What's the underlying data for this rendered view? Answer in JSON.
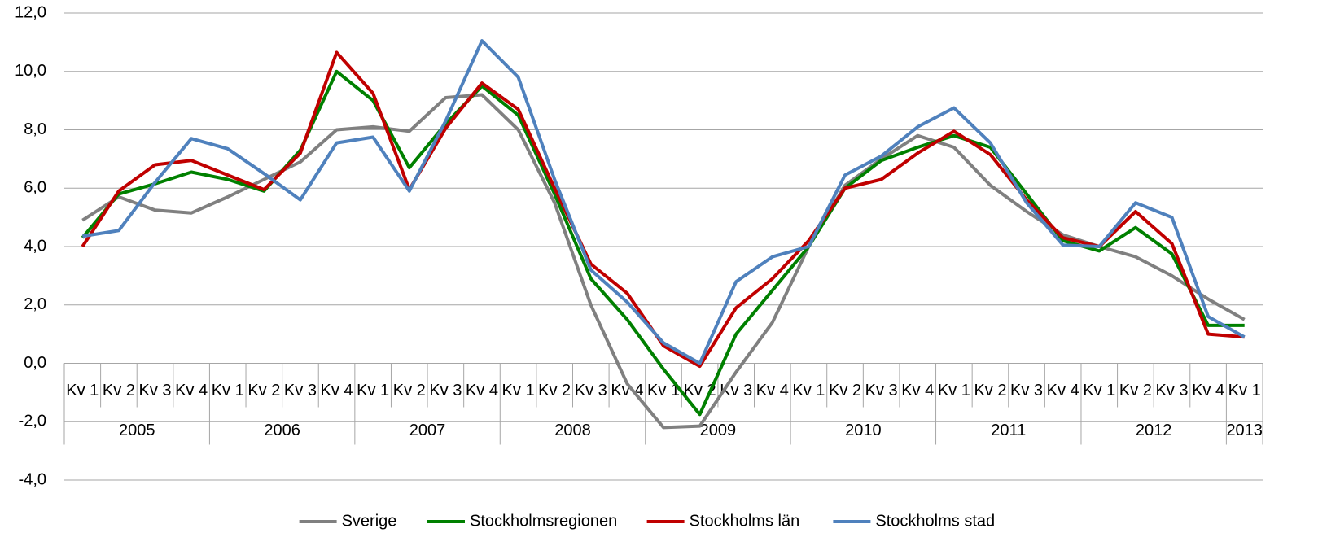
{
  "chart_data": {
    "type": "line",
    "categories": [
      "Kv 1",
      "Kv 2",
      "Kv 3",
      "Kv 4",
      "Kv 1",
      "Kv 2",
      "Kv 3",
      "Kv 4",
      "Kv 1",
      "Kv 2",
      "Kv 3",
      "Kv 4",
      "Kv 1",
      "Kv 2",
      "Kv 3",
      "Kv 4",
      "Kv 1",
      "Kv 2",
      "Kv 3",
      "Kv 4",
      "Kv 1",
      "Kv 2",
      "Kv 3",
      "Kv 4",
      "Kv 1",
      "Kv 2",
      "Kv 3",
      "Kv 4",
      "Kv 1",
      "Kv 2",
      "Kv 3",
      "Kv 4",
      "Kv 1"
    ],
    "year_labels": [
      "2005",
      "2006",
      "2007",
      "2008",
      "2009",
      "2010",
      "2011",
      "2012",
      "2013"
    ],
    "series": [
      {
        "name": "Sverige",
        "color": "#808080",
        "values": [
          4.9,
          5.7,
          5.25,
          5.15,
          5.7,
          6.3,
          6.9,
          8.0,
          8.1,
          7.95,
          9.1,
          9.2,
          8.0,
          5.5,
          2.0,
          -0.7,
          -2.2,
          -2.15,
          -0.3,
          1.4,
          4.0,
          6.1,
          7.0,
          7.8,
          7.4,
          6.1,
          5.2,
          4.4,
          4.0,
          3.65,
          3.0,
          2.2,
          1.5
        ]
      },
      {
        "name": "Stockholmsregionen",
        "color": "#008000",
        "values": [
          4.3,
          5.8,
          6.15,
          6.55,
          6.3,
          5.9,
          7.3,
          10.0,
          9.0,
          6.7,
          8.2,
          9.5,
          8.5,
          5.8,
          2.9,
          1.5,
          -0.2,
          -1.75,
          1.0,
          2.5,
          4.0,
          6.0,
          6.95,
          7.4,
          7.8,
          7.4,
          5.8,
          4.2,
          3.85,
          4.65,
          3.75,
          1.3,
          1.3
        ]
      },
      {
        "name": "Stockholms län",
        "color": "#c00000",
        "values": [
          4.0,
          5.9,
          6.8,
          6.95,
          6.45,
          5.95,
          7.2,
          10.65,
          9.25,
          5.95,
          8.05,
          9.6,
          8.7,
          6.0,
          3.4,
          2.4,
          0.6,
          -0.1,
          1.9,
          2.9,
          4.2,
          6.0,
          6.3,
          7.2,
          7.95,
          7.15,
          5.6,
          4.3,
          4.0,
          5.2,
          4.1,
          1.0,
          0.9
        ]
      },
      {
        "name": "Stockholms stad",
        "color": "#4f81bd",
        "values": [
          4.35,
          4.55,
          6.2,
          7.7,
          7.35,
          6.5,
          5.6,
          7.55,
          7.75,
          5.9,
          8.3,
          11.05,
          9.8,
          6.3,
          3.2,
          2.1,
          0.7,
          0.0,
          2.8,
          3.65,
          4.0,
          6.45,
          7.1,
          8.1,
          8.75,
          7.55,
          5.5,
          4.05,
          4.0,
          5.5,
          5.0,
          1.6,
          0.9
        ]
      }
    ],
    "ylim": [
      -4,
      12
    ],
    "yticks": [
      {
        "value": -4,
        "label": "-4,0"
      },
      {
        "value": -2,
        "label": "-2,0"
      },
      {
        "value": 0,
        "label": "0,0"
      },
      {
        "value": 2,
        "label": "2,0"
      },
      {
        "value": 4,
        "label": "4,0"
      },
      {
        "value": 6,
        "label": "6,0"
      },
      {
        "value": 8,
        "label": "8,0"
      },
      {
        "value": 10,
        "label": "10,0"
      },
      {
        "value": 12,
        "label": "12,0"
      }
    ],
    "grid": true,
    "legend": "bottom"
  }
}
